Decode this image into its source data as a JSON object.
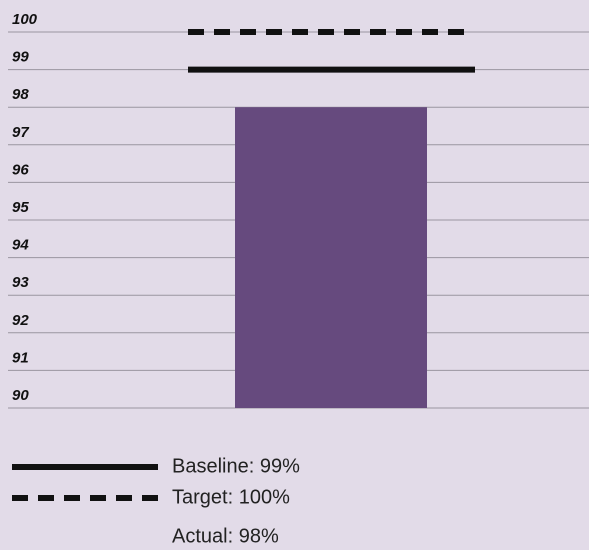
{
  "chart_data": {
    "type": "bar",
    "categories": [
      null
    ],
    "series": [
      {
        "name": "Actual: 98%",
        "color": "#664a7e",
        "values": [
          98
        ]
      }
    ],
    "reference_lines": [
      {
        "name": "Baseline: 99%",
        "value": 99,
        "style": "solid",
        "color": "#111111"
      },
      {
        "name": "Target: 100%",
        "value": 100,
        "style": "dashed",
        "color": "#111111"
      }
    ],
    "ylim": [
      90,
      100
    ],
    "yticks": [
      90,
      91,
      92,
      93,
      94,
      95,
      96,
      97,
      98,
      99,
      100
    ],
    "grid": true
  }
}
